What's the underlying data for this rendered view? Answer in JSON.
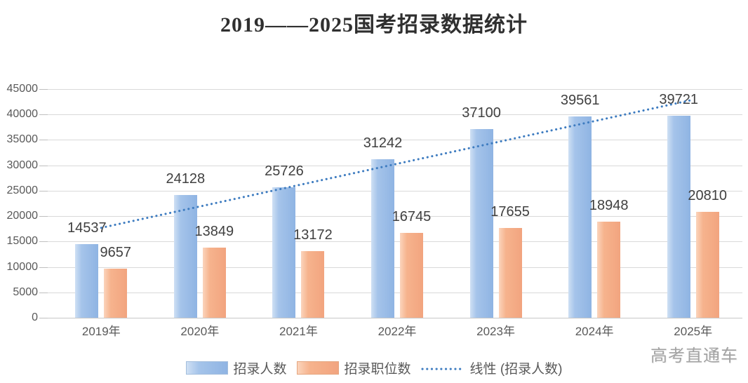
{
  "title": "2019——2025国考招录数据统计",
  "watermark": "高考直通车",
  "chart_data": {
    "type": "bar",
    "title": "2019——2025国考招录数据统计",
    "categories": [
      "2019年",
      "2020年",
      "2021年",
      "2022年",
      "2023年",
      "2024年",
      "2025年"
    ],
    "series": [
      {
        "name": "招录人数",
        "type": "bar",
        "color": "#8fb4e3",
        "values": [
          14537,
          24128,
          25726,
          31242,
          37100,
          39561,
          39721
        ]
      },
      {
        "name": "招录职位数",
        "type": "bar",
        "color": "#f2a47f",
        "values": [
          9657,
          13849,
          13172,
          16745,
          17655,
          18948,
          20810
        ]
      },
      {
        "name": "线性 (招录人数)",
        "type": "trendline",
        "style": "dotted",
        "color": "#3e7cc0",
        "fit_endpoints": [
          17700,
          42900
        ]
      }
    ],
    "ylim": [
      0,
      45000
    ],
    "ytick_step": 5000,
    "ytick_labels": [
      "0",
      "5000",
      "10000",
      "15000",
      "20000",
      "25000",
      "30000",
      "35000",
      "40000",
      "45000"
    ],
    "grid": true,
    "legend_position": "bottom",
    "data_labels": true,
    "axis_text_color": "#595959",
    "label_text_color": "#404040",
    "gridline_color": "#d9d9d9"
  }
}
